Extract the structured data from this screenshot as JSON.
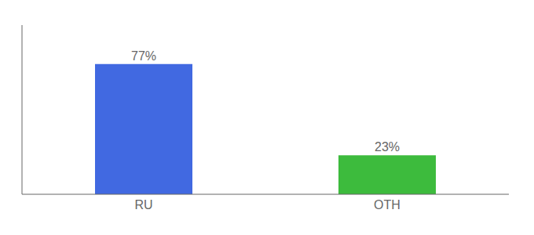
{
  "chart_data": {
    "type": "bar",
    "categories": [
      "RU",
      "OTH"
    ],
    "values": [
      77,
      23
    ],
    "value_labels": [
      "77%",
      "23%"
    ],
    "colors": [
      "#4169e1",
      "#3dbb3d"
    ],
    "ylim": [
      0,
      100
    ],
    "data_labels": true,
    "tick_labels": "x"
  }
}
